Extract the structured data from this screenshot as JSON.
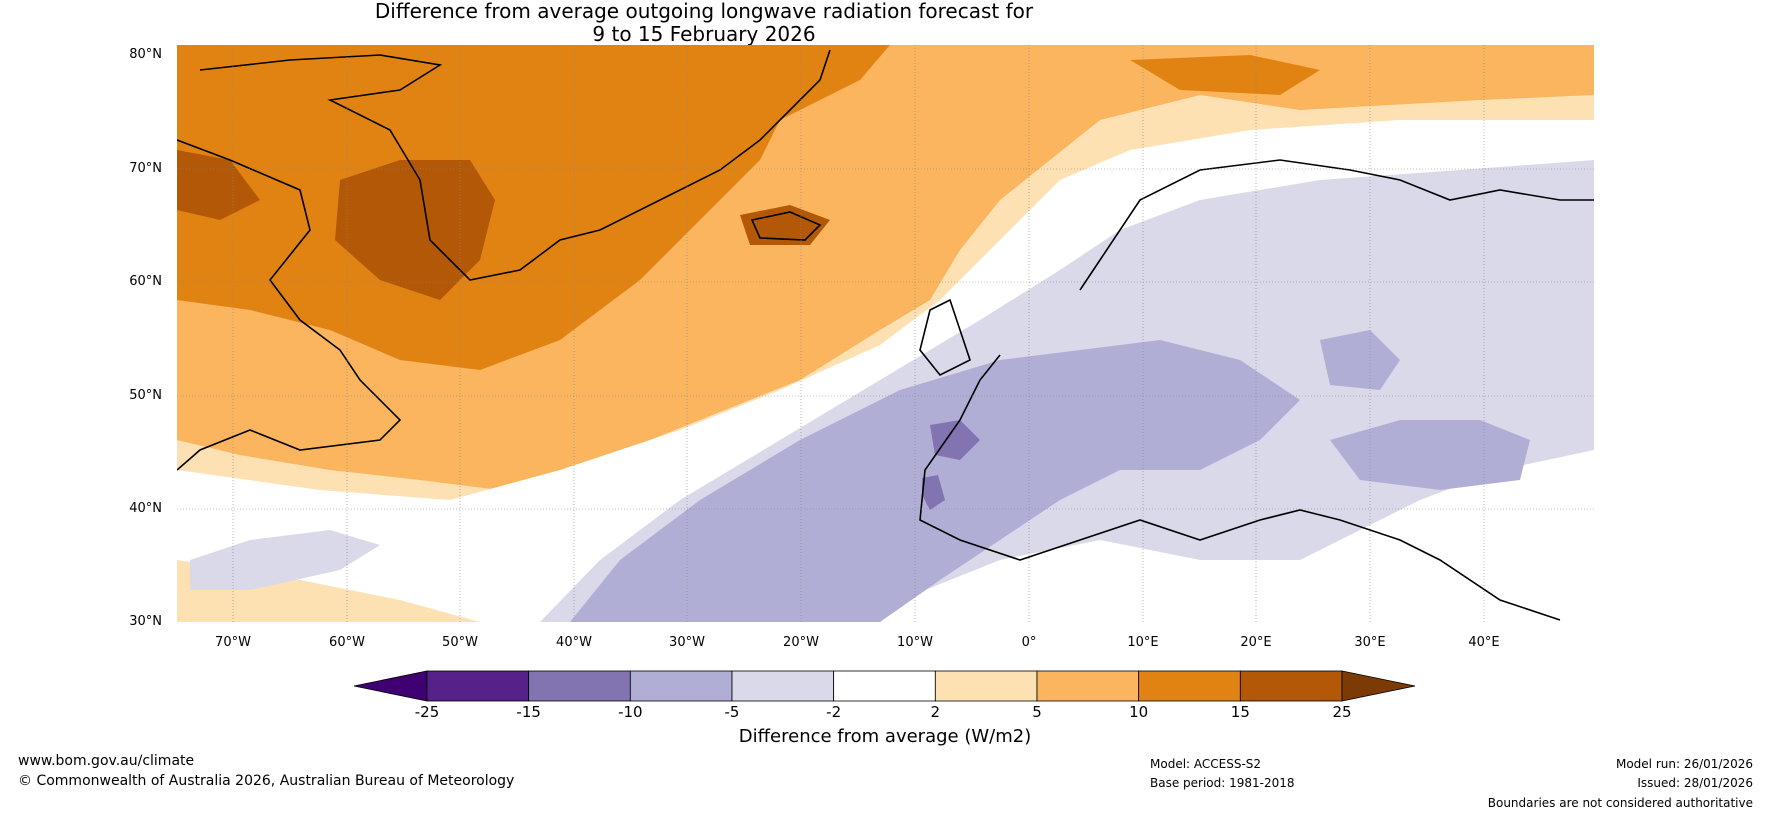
{
  "title": {
    "line1": "Difference from average outgoing longwave radiation forecast for",
    "line2": "9 to 15 February 2026"
  },
  "latitude_labels": [
    "80°N",
    "70°N",
    "60°N",
    "50°N",
    "40°N",
    "30°N"
  ],
  "longitude_labels": [
    "70°W",
    "60°W",
    "50°W",
    "40°W",
    "30°W",
    "20°W",
    "10°W",
    "0°",
    "10°E",
    "20°E",
    "30°E",
    "40°E"
  ],
  "colorbar": {
    "ticks": [
      "-25",
      "-15",
      "-10",
      "-5",
      "-2",
      "2",
      "5",
      "10",
      "15",
      "25"
    ],
    "colors": [
      "#3f0071",
      "#56228a",
      "#8174b0",
      "#b1aed5",
      "#d9d9ea",
      "#ffffff",
      "#fee1b3",
      "#fbb55e",
      "#e18312",
      "#b35807",
      "#7c3a05"
    ],
    "label": "Difference from average (W/m2)"
  },
  "footer": {
    "url": "www.bom.gov.au/climate",
    "copyright": "© Commonwealth of Australia 2026, Australian Bureau of Meteorology",
    "model": "Model: ACCESS-S2",
    "base_period": "Base period: 1981-2018",
    "model_run": "Model run: 26/01/2026",
    "issued": "Issued: 28/01/2026",
    "disclaimer": "Boundaries are not considered authoritative"
  }
}
